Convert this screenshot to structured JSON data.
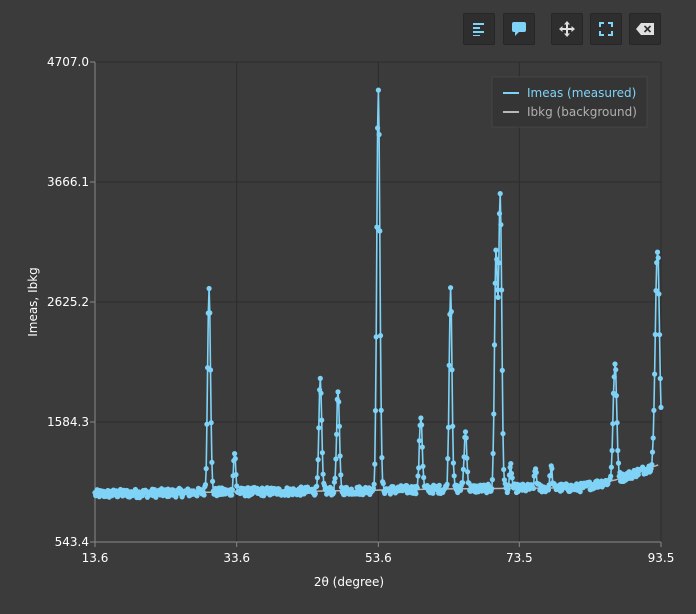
{
  "toolbar": {
    "buttons": [
      {
        "name": "legend-toggle-button",
        "icon": "align-left-icon"
      },
      {
        "name": "tooltip-toggle-button",
        "icon": "speech-bubble-icon"
      },
      {
        "name": "pan-button",
        "icon": "move-arrows-icon"
      },
      {
        "name": "fullscreen-button",
        "icon": "expand-corners-icon"
      },
      {
        "name": "clear-button",
        "icon": "backspace-x-icon"
      }
    ]
  },
  "colors": {
    "background": "#3b3b3b",
    "measured": "#7fd3f7",
    "background_curve": "#b8b8b8",
    "grid": "#2c2c2c",
    "legend_bg": "#353535",
    "legend_measured_text": "#7fd3f7",
    "legend_bkg_text": "#b0b0b0"
  },
  "chart_data": {
    "type": "line",
    "title": "",
    "xlabel": "2θ (degree)",
    "ylabel": "Imeas, Ibkg",
    "xlim": [
      13.6,
      93.5
    ],
    "ylim": [
      543.4,
      4707.0
    ],
    "xticks": [
      "13.6",
      "33.6",
      "53.6",
      "73.5",
      "93.5"
    ],
    "yticks": [
      "543.4",
      "1584.3",
      "2625.2",
      "3666.1",
      "4707.0"
    ],
    "grid": true,
    "legend_position": "top-right",
    "baseline": [
      [
        13.6,
        960
      ],
      [
        30,
        975
      ],
      [
        45,
        985
      ],
      [
        55,
        995
      ],
      [
        65,
        1005
      ],
      [
        75,
        1010
      ],
      [
        82,
        1015
      ],
      [
        87,
        1080
      ],
      [
        93.5,
        1220
      ]
    ],
    "peaks": [
      {
        "x": 29.7,
        "h": 2770,
        "w": 0.2
      },
      {
        "x": 33.3,
        "h": 1320,
        "w": 0.15
      },
      {
        "x": 45.4,
        "h": 1940,
        "w": 0.2
      },
      {
        "x": 47.9,
        "h": 1850,
        "w": 0.2
      },
      {
        "x": 53.6,
        "h": 4440,
        "w": 0.22
      },
      {
        "x": 59.6,
        "h": 1640,
        "w": 0.2
      },
      {
        "x": 63.8,
        "h": 2760,
        "w": 0.2
      },
      {
        "x": 65.9,
        "h": 1500,
        "w": 0.2
      },
      {
        "x": 70.2,
        "h": 3030,
        "w": 0.2
      },
      {
        "x": 70.8,
        "h": 3560,
        "w": 0.22
      },
      {
        "x": 72.3,
        "h": 1200,
        "w": 0.15
      },
      {
        "x": 75.8,
        "h": 1180,
        "w": 0.15
      },
      {
        "x": 78.0,
        "h": 1190,
        "w": 0.15
      },
      {
        "x": 87.0,
        "h": 2080,
        "w": 0.25
      },
      {
        "x": 93.0,
        "h": 3090,
        "w": 0.3
      }
    ],
    "series": [
      {
        "name": "Imeas (measured)"
      },
      {
        "name": "Ibkg (background)"
      }
    ]
  }
}
